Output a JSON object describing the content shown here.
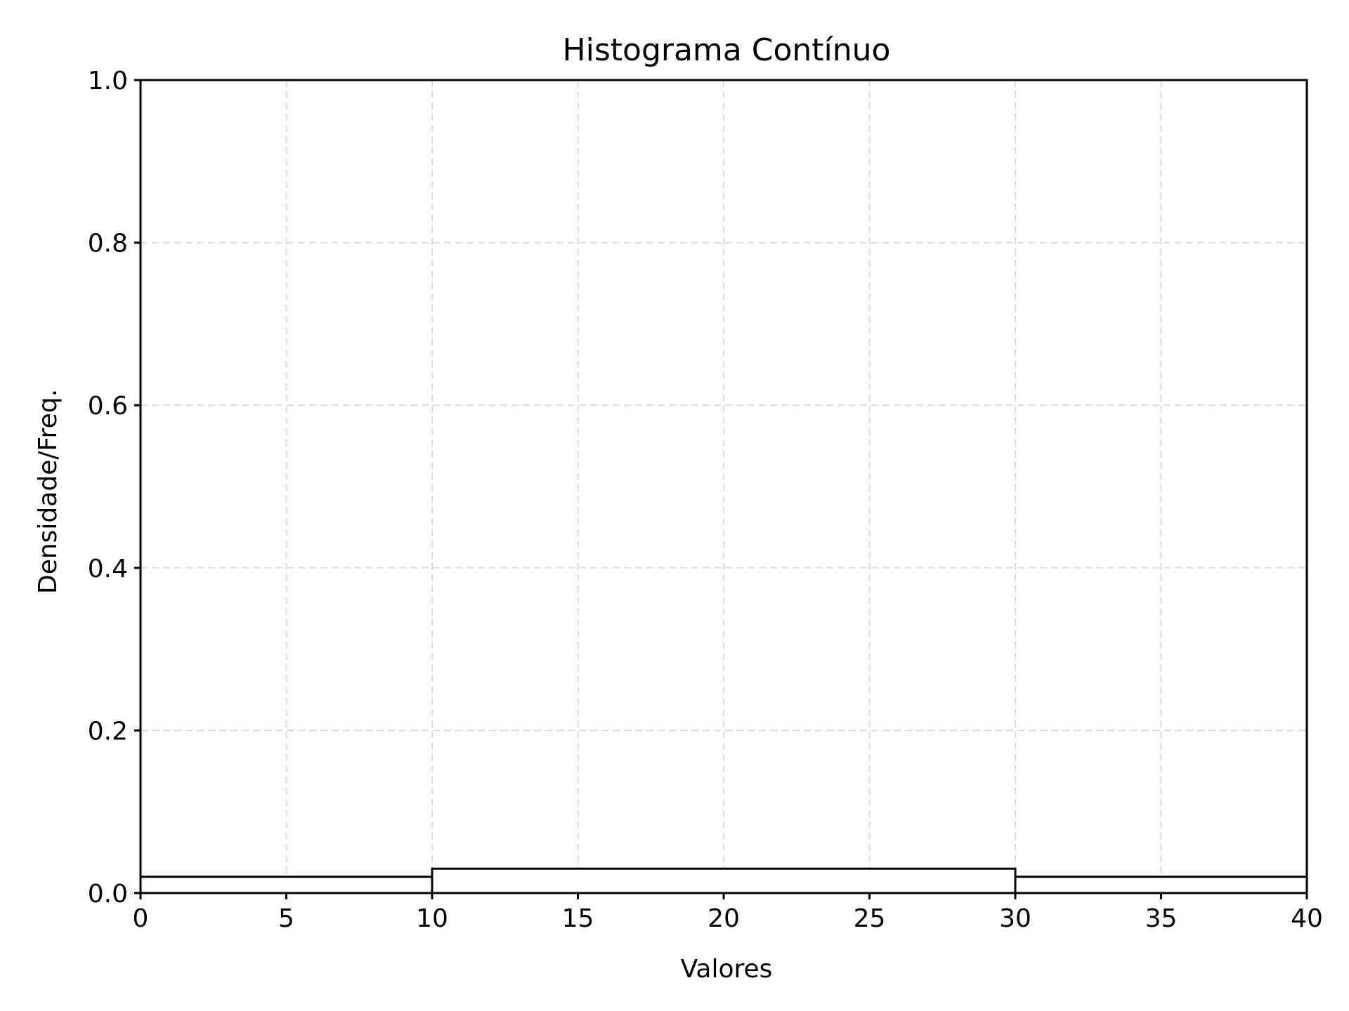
{
  "chart_data": {
    "type": "bar",
    "title": "Histograma Contínuo",
    "xlabel": "Valores",
    "ylabel": "Densidade/Freq.",
    "xlim": [
      0,
      40
    ],
    "ylim": [
      0,
      1.0
    ],
    "bins": [
      {
        "start": 0,
        "end": 10,
        "value": 0.02
      },
      {
        "start": 10,
        "end": 30,
        "value": 0.03
      },
      {
        "start": 30,
        "end": 40,
        "value": 0.02
      }
    ],
    "xticks": [
      0,
      5,
      10,
      15,
      20,
      25,
      30,
      35,
      40
    ],
    "xtick_labels": [
      "0",
      "5",
      "10",
      "15",
      "20",
      "25",
      "30",
      "35",
      "40"
    ],
    "yticks": [
      0.0,
      0.2,
      0.4,
      0.6,
      0.8,
      1.0
    ],
    "ytick_labels": [
      "0.0",
      "0.2",
      "0.4",
      "0.6",
      "0.8",
      "1.0"
    ],
    "grid": true,
    "colors": {
      "bar_fill": "#ffffff",
      "bar_edge": "#000000",
      "grid": "#dcdcdc"
    }
  }
}
